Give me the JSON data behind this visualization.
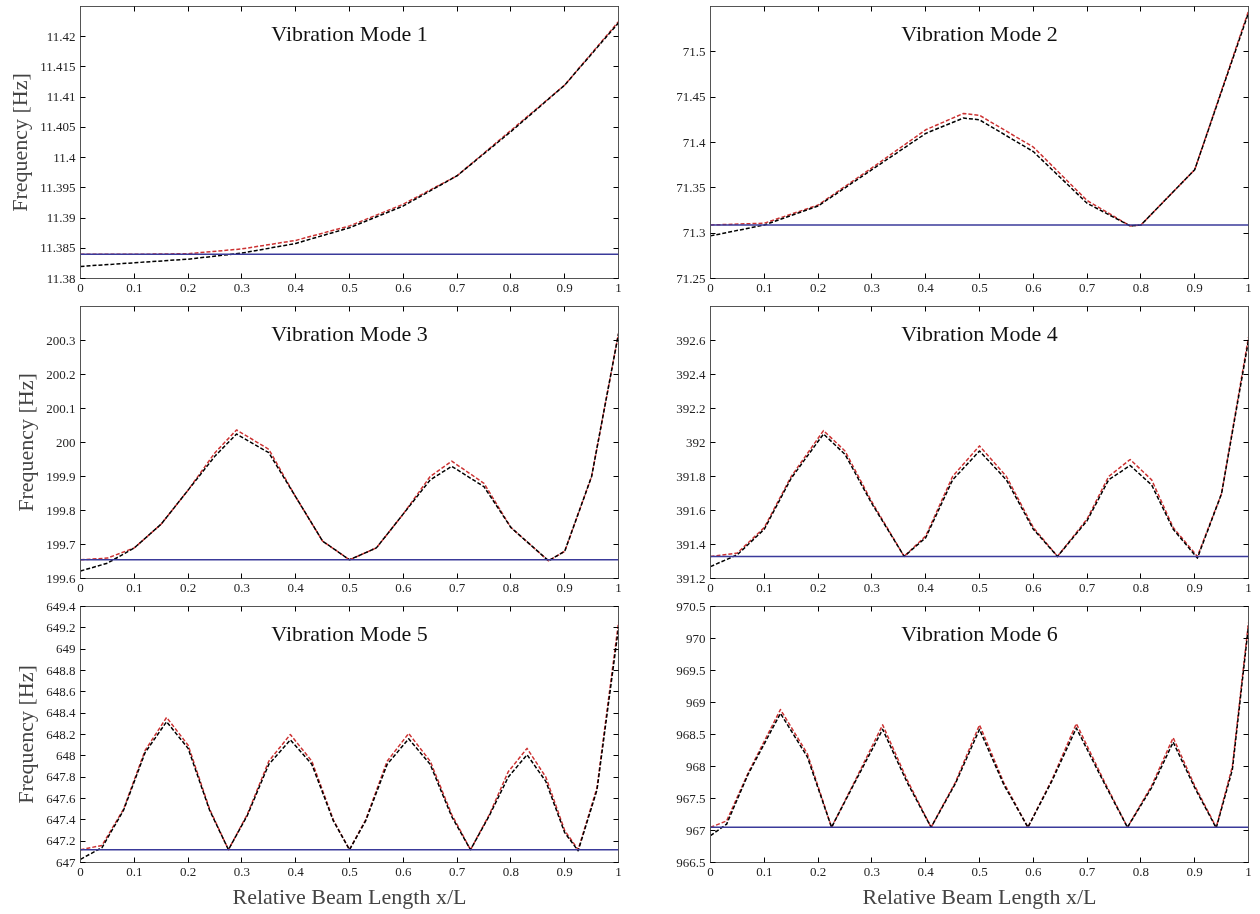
{
  "chart_data": [
    {
      "type": "line",
      "title": "Vibration Mode 1",
      "ylabel": "Frequency [Hz]",
      "xlim": [
        0,
        1
      ],
      "ylim": [
        11.38,
        11.425
      ],
      "xticks": [
        0,
        0.1,
        0.2,
        0.3,
        0.4,
        0.5,
        0.6,
        0.7,
        0.8,
        0.9,
        1
      ],
      "yticks": [
        11.38,
        11.385,
        11.39,
        11.395,
        11.4,
        11.405,
        11.41,
        11.415,
        11.42
      ],
      "grid": false,
      "line_style": "dashed",
      "tick_labels": true,
      "x": [
        0,
        0.1,
        0.2,
        0.3,
        0.4,
        0.5,
        0.6,
        0.7,
        0.8,
        0.9,
        1
      ],
      "series": [
        {
          "color": "#cc3333",
          "values": [
            11.384,
            11.384,
            11.3841,
            11.3849,
            11.3863,
            11.3887,
            11.3923,
            11.397,
            11.4045,
            11.412,
            11.4225
          ]
        },
        {
          "color": "#000000",
          "values": [
            11.382,
            11.3826,
            11.3832,
            11.3842,
            11.3858,
            11.3884,
            11.392,
            11.397,
            11.4043,
            11.412,
            11.4223
          ]
        }
      ],
      "ref_lines": [
        {
          "axis": "y",
          "value": 11.384,
          "color": "#3a3a9a"
        }
      ]
    },
    {
      "type": "line",
      "title": "Vibration Mode 2",
      "xlim": [
        0,
        1
      ],
      "ylim": [
        71.25,
        71.55
      ],
      "xticks": [
        0,
        0.1,
        0.2,
        0.3,
        0.4,
        0.5,
        0.6,
        0.7,
        0.8,
        0.9,
        1
      ],
      "yticks": [
        71.25,
        71.3,
        71.35,
        71.4,
        71.45,
        71.5
      ],
      "grid": false,
      "line_style": "dashed",
      "tick_labels": true,
      "x": [
        0,
        0.1,
        0.2,
        0.3,
        0.4,
        0.47,
        0.5,
        0.6,
        0.7,
        0.78,
        0.8,
        0.9,
        1
      ],
      "series": [
        {
          "color": "#cc3333",
          "values": [
            71.309,
            71.311,
            71.331,
            71.372,
            71.414,
            71.432,
            71.43,
            71.395,
            71.336,
            71.308,
            71.309,
            71.37,
            71.545
          ]
        },
        {
          "color": "#000000",
          "values": [
            71.297,
            71.309,
            71.33,
            71.37,
            71.41,
            71.427,
            71.425,
            71.39,
            71.333,
            71.308,
            71.309,
            71.37,
            71.543
          ]
        }
      ],
      "ref_lines": [
        {
          "axis": "y",
          "value": 71.309,
          "color": "#3a3a9a"
        }
      ]
    },
    {
      "type": "line",
      "title": "Vibration Mode 3",
      "ylabel": "Frequency [Hz]",
      "xlim": [
        0,
        1
      ],
      "ylim": [
        199.6,
        200.4
      ],
      "xticks": [
        0,
        0.1,
        0.2,
        0.3,
        0.4,
        0.5,
        0.6,
        0.7,
        0.8,
        0.9,
        1
      ],
      "yticks": [
        199.6,
        199.7,
        199.8,
        199.9,
        200,
        200.1,
        200.2,
        200.3
      ],
      "grid": false,
      "line_style": "dashed",
      "tick_labels": true,
      "x": [
        0,
        0.05,
        0.1,
        0.15,
        0.2,
        0.25,
        0.29,
        0.35,
        0.4,
        0.45,
        0.5,
        0.55,
        0.6,
        0.65,
        0.69,
        0.75,
        0.8,
        0.87,
        0.9,
        0.95,
        1
      ],
      "series": [
        {
          "color": "#cc3333",
          "values": [
            199.655,
            199.66,
            199.69,
            199.76,
            199.86,
            199.97,
            200.037,
            199.98,
            199.84,
            199.71,
            199.655,
            199.69,
            199.79,
            199.9,
            199.945,
            199.88,
            199.75,
            199.652,
            199.68,
            199.9,
            200.32
          ]
        },
        {
          "color": "#000000",
          "values": [
            199.622,
            199.645,
            199.69,
            199.76,
            199.86,
            199.96,
            200.025,
            199.97,
            199.84,
            199.71,
            199.655,
            199.69,
            199.79,
            199.89,
            199.93,
            199.87,
            199.75,
            199.652,
            199.68,
            199.9,
            200.32
          ]
        }
      ],
      "ref_lines": [
        {
          "axis": "y",
          "value": 199.655,
          "color": "#3a3a9a"
        }
      ]
    },
    {
      "type": "line",
      "title": "Vibration Mode 4",
      "xlim": [
        0,
        1
      ],
      "ylim": [
        391.2,
        392.8
      ],
      "xticks": [
        0,
        0.1,
        0.2,
        0.3,
        0.4,
        0.5,
        0.6,
        0.7,
        0.8,
        0.9,
        1
      ],
      "yticks": [
        391.2,
        391.4,
        391.6,
        391.8,
        392,
        392.2,
        392.4,
        392.6
      ],
      "grid": false,
      "line_style": "dashed",
      "tick_labels": true,
      "x": [
        0,
        0.05,
        0.1,
        0.15,
        0.21,
        0.25,
        0.3,
        0.36,
        0.4,
        0.45,
        0.5,
        0.55,
        0.6,
        0.645,
        0.7,
        0.74,
        0.78,
        0.82,
        0.86,
        0.905,
        0.95,
        1
      ],
      "series": [
        {
          "color": "#cc3333",
          "values": [
            391.33,
            391.35,
            391.5,
            391.8,
            392.07,
            391.95,
            391.65,
            391.33,
            391.45,
            391.8,
            391.98,
            391.8,
            391.5,
            391.33,
            391.55,
            391.8,
            391.9,
            391.78,
            391.5,
            391.33,
            391.7,
            392.62
          ]
        },
        {
          "color": "#000000",
          "values": [
            391.27,
            391.34,
            391.49,
            391.79,
            392.05,
            391.93,
            391.64,
            391.33,
            391.44,
            391.78,
            391.95,
            391.78,
            391.49,
            391.33,
            391.54,
            391.78,
            391.865,
            391.75,
            391.49,
            391.32,
            391.7,
            392.6
          ]
        }
      ],
      "ref_lines": [
        {
          "axis": "y",
          "value": 391.33,
          "color": "#3a3a9a"
        }
      ]
    },
    {
      "type": "line",
      "title": "Vibration Mode 5",
      "xlabel": "Relative Beam Length x/L",
      "ylabel": "Frequency [Hz]",
      "xlim": [
        0,
        1
      ],
      "ylim": [
        647,
        649.4
      ],
      "xticks": [
        0,
        0.1,
        0.2,
        0.3,
        0.4,
        0.5,
        0.6,
        0.7,
        0.8,
        0.9,
        1
      ],
      "yticks": [
        647,
        647.2,
        647.4,
        647.6,
        647.8,
        648,
        648.2,
        648.4,
        648.6,
        648.8,
        649,
        649.2,
        649.4
      ],
      "grid": false,
      "line_style": "dashed",
      "tick_labels": true,
      "x": [
        0,
        0.04,
        0.08,
        0.12,
        0.16,
        0.2,
        0.24,
        0.275,
        0.31,
        0.35,
        0.39,
        0.43,
        0.47,
        0.5,
        0.53,
        0.57,
        0.61,
        0.65,
        0.69,
        0.725,
        0.76,
        0.795,
        0.83,
        0.865,
        0.9,
        0.925,
        0.96,
        1
      ],
      "series": [
        {
          "color": "#cc3333",
          "values": [
            647.12,
            647.16,
            647.5,
            648.05,
            648.36,
            648.1,
            647.5,
            647.12,
            647.45,
            647.95,
            648.2,
            647.95,
            647.4,
            647.12,
            647.4,
            647.95,
            648.21,
            647.95,
            647.45,
            647.12,
            647.45,
            647.85,
            648.07,
            647.8,
            647.3,
            647.12,
            647.7,
            649.25
          ]
        },
        {
          "color": "#000000",
          "values": [
            647.03,
            647.14,
            647.49,
            648.03,
            648.32,
            648.07,
            647.49,
            647.12,
            647.44,
            647.92,
            648.15,
            647.92,
            647.39,
            647.12,
            647.39,
            647.92,
            648.16,
            647.92,
            647.43,
            647.12,
            647.44,
            647.8,
            648.01,
            647.76,
            647.28,
            647.11,
            647.68,
            649.2
          ]
        }
      ],
      "ref_lines": [
        {
          "axis": "y",
          "value": 647.12,
          "color": "#3a3a9a"
        }
      ]
    },
    {
      "type": "line",
      "title": "Vibration Mode 6",
      "xlabel": "Relative Beam Length x/L",
      "xlim": [
        0,
        1
      ],
      "ylim": [
        966.5,
        970.5
      ],
      "xticks": [
        0,
        0.1,
        0.2,
        0.3,
        0.4,
        0.5,
        0.6,
        0.7,
        0.8,
        0.9,
        1
      ],
      "yticks": [
        966.5,
        967,
        967.5,
        968,
        968.5,
        969,
        969.5,
        970,
        970.5
      ],
      "grid": false,
      "line_style": "dashed",
      "tick_labels": true,
      "x": [
        0,
        0.03,
        0.07,
        0.13,
        0.18,
        0.225,
        0.27,
        0.32,
        0.365,
        0.41,
        0.455,
        0.5,
        0.545,
        0.59,
        0.635,
        0.68,
        0.73,
        0.775,
        0.82,
        0.86,
        0.9,
        0.94,
        0.97,
        1
      ],
      "series": [
        {
          "color": "#cc3333",
          "values": [
            967.05,
            967.15,
            967.9,
            968.89,
            968.2,
            967.05,
            967.8,
            968.65,
            967.8,
            967.05,
            967.75,
            968.65,
            967.75,
            967.05,
            967.8,
            968.67,
            967.8,
            967.05,
            967.7,
            968.45,
            967.7,
            967.05,
            968.0,
            970.25
          ]
        },
        {
          "color": "#000000",
          "values": [
            966.92,
            967.1,
            967.88,
            968.83,
            968.15,
            967.05,
            967.78,
            968.58,
            967.76,
            967.05,
            967.73,
            968.58,
            967.72,
            967.05,
            967.78,
            968.6,
            967.77,
            967.05,
            967.67,
            968.38,
            967.67,
            967.04,
            967.95,
            970.2
          ]
        }
      ],
      "ref_lines": [
        {
          "axis": "y",
          "value": 967.05,
          "color": "#3a3a9a"
        }
      ]
    }
  ]
}
